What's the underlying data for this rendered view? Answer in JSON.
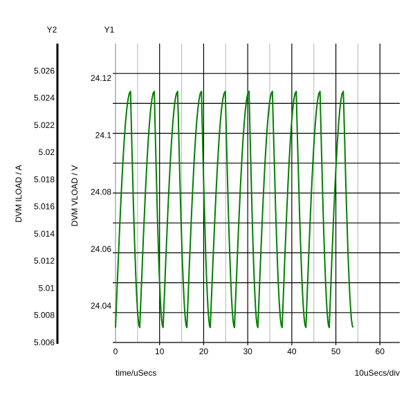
{
  "chart_data": {
    "type": "line",
    "y1_title": "Y1",
    "y2_title": "Y2",
    "xlabel": "time/uSecs",
    "x_scale_note": "10uSecs/div",
    "ylabel": "DVM VLOAD / V",
    "y2label": "DVM ILOAD / A",
    "xlim": [
      0,
      64.5
    ],
    "ylim": [
      24.03,
      24.13
    ],
    "y2lim": [
      5.006,
      5.028
    ],
    "x_ticks": [
      0,
      10,
      20,
      30,
      40,
      50,
      60
    ],
    "x_minor_ticks": [
      5,
      15,
      25,
      35,
      45,
      55
    ],
    "y_ticks": [
      24.04,
      24.06,
      24.08,
      24.1,
      24.12
    ],
    "y_tick_labels": [
      "24.04",
      "24.06",
      "24.08",
      "24.1",
      "24.12"
    ],
    "y_gridlines": [
      24.04,
      24.05,
      24.06,
      24.07,
      24.08,
      24.09,
      24.1,
      24.11,
      24.12
    ],
    "y2_tick_labels": [
      "5.006",
      "5.008",
      "5.01",
      "5.012",
      "5.014",
      "5.016",
      "5.018",
      "5.02",
      "5.022",
      "5.024",
      "5.026"
    ],
    "grid": true,
    "series": [
      {
        "color": "#008000",
        "axis": "y1",
        "points": [
          [
            0,
            24.035
          ],
          [
            3.4,
            24.114
          ],
          [
            5.5,
            24.035
          ],
          [
            8.8,
            24.114
          ],
          [
            10.8,
            24.035
          ],
          [
            14.1,
            24.114
          ],
          [
            16.2,
            24.035
          ],
          [
            19.5,
            24.114
          ],
          [
            21.5,
            24.035
          ],
          [
            24.9,
            24.114
          ],
          [
            27.0,
            24.035
          ],
          [
            30.3,
            24.114
          ],
          [
            32.3,
            24.035
          ],
          [
            35.6,
            24.114
          ],
          [
            37.8,
            24.035
          ],
          [
            41.0,
            24.114
          ],
          [
            43.2,
            24.035
          ],
          [
            46.4,
            24.114
          ],
          [
            48.5,
            24.035
          ],
          [
            51.7,
            24.114
          ],
          [
            53.9,
            24.035
          ]
        ]
      }
    ]
  }
}
